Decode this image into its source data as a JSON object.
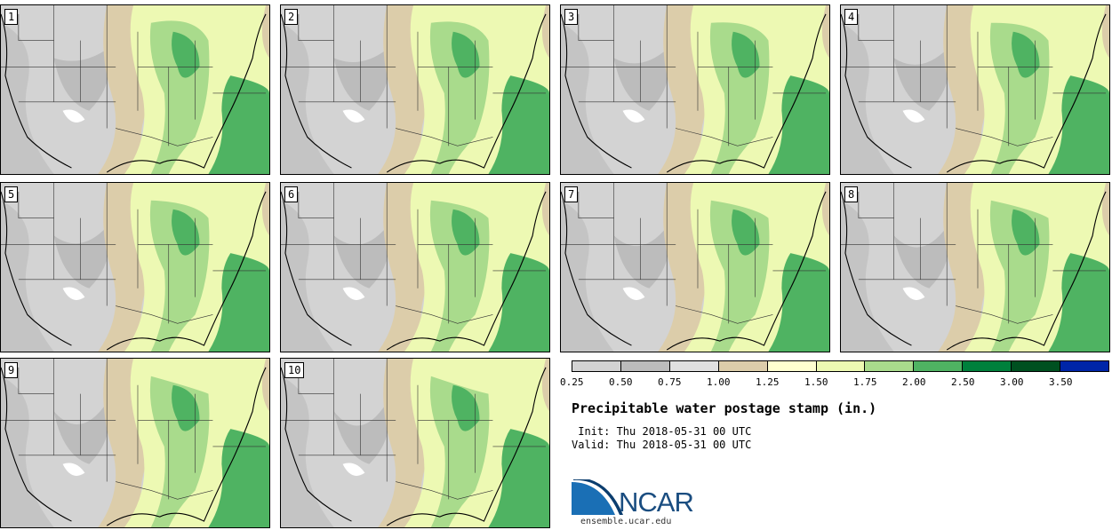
{
  "stamps": [
    {
      "label": "1"
    },
    {
      "label": "2"
    },
    {
      "label": "3"
    },
    {
      "label": "4"
    },
    {
      "label": "5"
    },
    {
      "label": "6"
    },
    {
      "label": "7"
    },
    {
      "label": "8"
    },
    {
      "label": "9"
    },
    {
      "label": "10"
    }
  ],
  "colorbar": {
    "colors": [
      "#d3d3d3",
      "#bcbcbc",
      "#e0e0e0",
      "#dccdaa",
      "#fefed0",
      "#edf9b3",
      "#a9db8c",
      "#4fb362",
      "#00803c",
      "#005020",
      "#0025a8"
    ],
    "ticks": [
      "0.25",
      "0.50",
      "0.75",
      "1.00",
      "1.25",
      "1.50",
      "1.75",
      "2.00",
      "2.50",
      "3.00",
      "3.50"
    ]
  },
  "title": "Precipitable water postage stamp (in.)",
  "init_line": " Init: Thu 2018-05-31 00 UTC",
  "valid_line": "Valid: Thu 2018-05-31 00 UTC",
  "logo": {
    "text": "NCAR",
    "color": "#1a4d80"
  },
  "website": "ensemble.ucar.edu"
}
